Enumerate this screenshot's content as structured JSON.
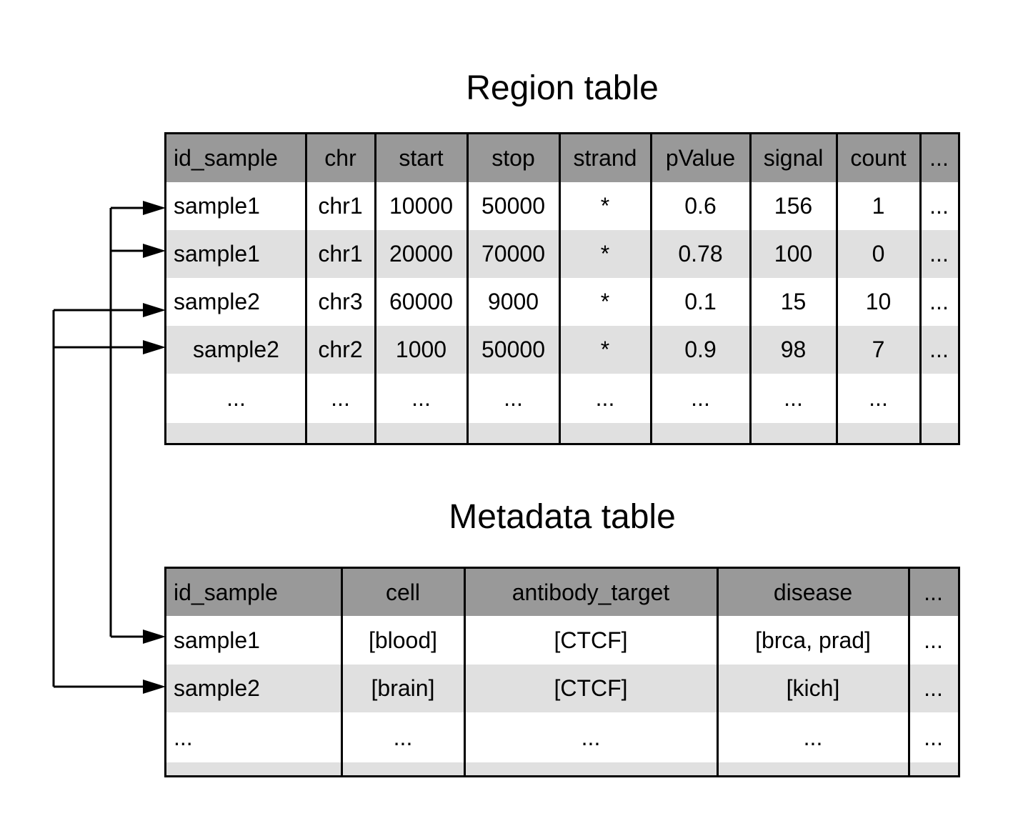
{
  "region_table": {
    "title": "Region table",
    "columns": [
      "id_sample",
      "chr",
      "start",
      "stop",
      "strand",
      "pValue",
      "signal",
      "count",
      "..."
    ],
    "rows": [
      [
        "sample1",
        "chr1",
        "10000",
        "50000",
        "*",
        "0.6",
        "156",
        "1",
        "..."
      ],
      [
        "sample1",
        "chr1",
        "20000",
        "70000",
        "*",
        "0.78",
        "100",
        "0",
        "..."
      ],
      [
        "sample2",
        "chr3",
        "60000",
        "9000",
        "*",
        "0.1",
        "15",
        "10",
        "..."
      ],
      [
        "sample2",
        "chr2",
        "1000",
        "50000",
        "*",
        "0.9",
        "98",
        "7",
        "..."
      ],
      [
        "...",
        "...",
        "...",
        "...",
        "...",
        "...",
        "...",
        "...",
        ""
      ]
    ]
  },
  "metadata_table": {
    "title": "Metadata table",
    "columns": [
      "id_sample",
      "cell",
      "antibody_target",
      "disease",
      "..."
    ],
    "rows": [
      [
        "sample1",
        "[blood]",
        "[CTCF]",
        "[brca, prad]",
        "..."
      ],
      [
        "sample2",
        "[brain]",
        "[CTCF]",
        "[kich]",
        "..."
      ],
      [
        "...",
        "...",
        "...",
        "...",
        "..."
      ]
    ]
  }
}
